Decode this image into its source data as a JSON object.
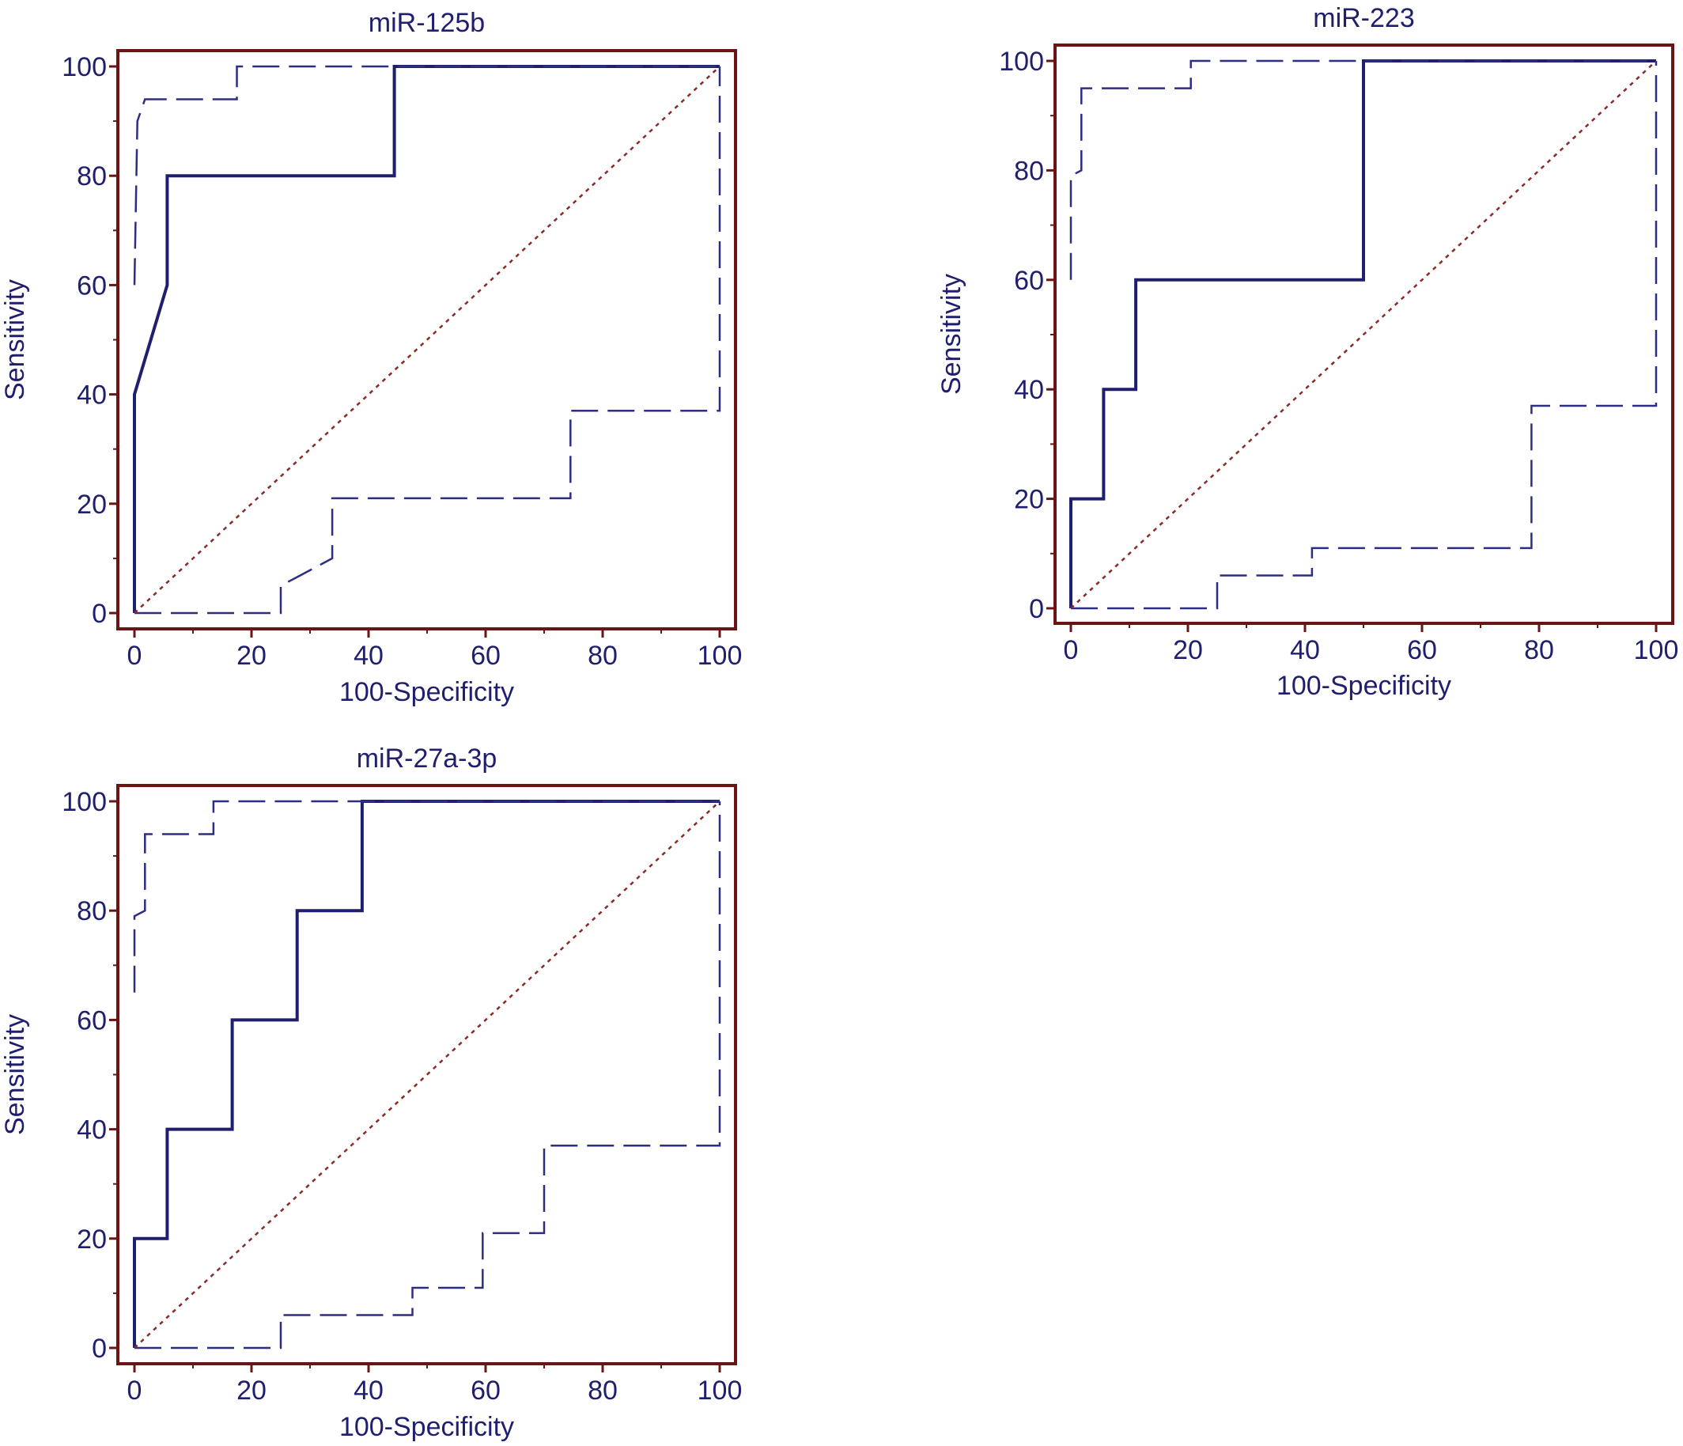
{
  "colors": {
    "frame": "#6b1414",
    "roc_curve": "#1f1f6e",
    "confidence_bounds": "#2e2e80",
    "reference_line": "#8a2b2b",
    "text": "#1f1f6e"
  },
  "chart_data": [
    {
      "type": "line",
      "title": "miR-125b",
      "xlabel": "100-Specificity",
      "ylabel": "Sensitivity",
      "xlim": [
        0,
        100
      ],
      "ylim": [
        0,
        100
      ],
      "xticks": [
        "0",
        "20",
        "40",
        "60",
        "80",
        "100"
      ],
      "yticks": [
        "0",
        "20",
        "40",
        "60",
        "80",
        "100"
      ],
      "grid": false,
      "series": [
        {
          "style": "solid",
          "x": [
            0,
            0,
            5.6,
            5.6,
            44.4,
            44.4,
            100
          ],
          "y": [
            0,
            40,
            60,
            80,
            80,
            100,
            100
          ]
        },
        {
          "style": "dashed",
          "x": [
            0,
            0.5,
            1.8,
            17.5,
            17.5,
            100,
            100
          ],
          "y": [
            60,
            90,
            94,
            94,
            100,
            100,
            100
          ]
        },
        {
          "style": "dashed",
          "x": [
            0,
            25,
            25,
            33.8,
            33.8,
            74.5,
            74.5,
            100,
            100
          ],
          "y": [
            0,
            0,
            5,
            10,
            21,
            21,
            37,
            37,
            100
          ]
        },
        {
          "style": "dotted",
          "x": [
            0,
            100
          ],
          "y": [
            0,
            100
          ]
        }
      ]
    },
    {
      "type": "line",
      "title": "miR-223",
      "xlabel": "100-Specificity",
      "ylabel": "Sensitivity",
      "xlim": [
        0,
        100
      ],
      "ylim": [
        0,
        100
      ],
      "xticks": [
        "0",
        "20",
        "40",
        "60",
        "80",
        "100"
      ],
      "yticks": [
        "0",
        "20",
        "40",
        "60",
        "80",
        "100"
      ],
      "grid": false,
      "series": [
        {
          "style": "solid",
          "x": [
            0,
            0,
            5.6,
            5.6,
            11.1,
            11.1,
            50,
            50,
            100
          ],
          "y": [
            0,
            20,
            20,
            40,
            40,
            60,
            60,
            100,
            100
          ]
        },
        {
          "style": "dashed",
          "x": [
            0,
            0,
            1.8,
            1.8,
            20.5,
            20.5,
            100,
            100
          ],
          "y": [
            60,
            79,
            80,
            95,
            95,
            100,
            100,
            100
          ]
        },
        {
          "style": "dashed",
          "x": [
            0,
            25,
            25,
            41.2,
            41.2,
            78.7,
            78.7,
            100,
            100
          ],
          "y": [
            0,
            0,
            6,
            6,
            11,
            11,
            37,
            37,
            100
          ]
        },
        {
          "style": "dotted",
          "x": [
            0,
            100
          ],
          "y": [
            0,
            100
          ]
        }
      ]
    },
    {
      "type": "line",
      "title": "miR-27a-3p",
      "xlabel": "100-Specificity",
      "ylabel": "Sensitivity",
      "xlim": [
        0,
        100
      ],
      "ylim": [
        0,
        100
      ],
      "xticks": [
        "0",
        "20",
        "40",
        "60",
        "80",
        "100"
      ],
      "yticks": [
        "0",
        "20",
        "40",
        "60",
        "80",
        "100"
      ],
      "grid": false,
      "series": [
        {
          "style": "solid",
          "x": [
            0,
            0,
            5.6,
            5.6,
            16.7,
            16.7,
            27.8,
            27.8,
            38.9,
            38.9,
            100
          ],
          "y": [
            0,
            20,
            20,
            40,
            40,
            60,
            60,
            80,
            80,
            100,
            100
          ]
        },
        {
          "style": "dashed",
          "x": [
            0,
            0,
            1.8,
            1.8,
            13.5,
            13.5,
            100,
            100
          ],
          "y": [
            65,
            79,
            80,
            94,
            94,
            100,
            100,
            100
          ]
        },
        {
          "style": "dashed",
          "x": [
            0,
            25,
            25,
            47.5,
            47.5,
            59.5,
            59.5,
            70,
            70,
            100,
            100
          ],
          "y": [
            0,
            0,
            6,
            6,
            11,
            11,
            21,
            21,
            37,
            37,
            100
          ]
        },
        {
          "style": "dotted",
          "x": [
            0,
            100
          ],
          "y": [
            0,
            100
          ]
        }
      ]
    }
  ]
}
